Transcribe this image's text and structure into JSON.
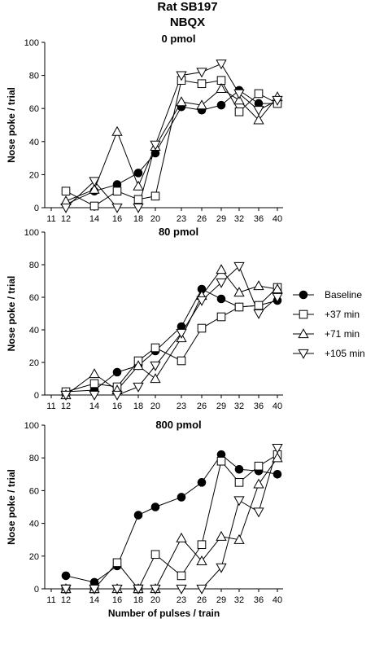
{
  "figure": {
    "title": "Rat SB197",
    "subtitle": "NBQX"
  },
  "legend": [
    {
      "label": "Baseline",
      "marker": "circle-filled"
    },
    {
      "label": "+37 min",
      "marker": "square-open"
    },
    {
      "label": "+71 min",
      "marker": "triangle-up-open"
    },
    {
      "label": "+105 min",
      "marker": "triangle-down-open"
    }
  ],
  "chart_data": [
    {
      "type": "line",
      "title": "0 pmol",
      "xlabel": "",
      "ylabel": "Nose poke / trial",
      "ylim": [
        0,
        100
      ],
      "yticks": [
        "0",
        "20",
        "40",
        "60",
        "80",
        "100"
      ],
      "categories": [
        "11",
        "12",
        "14",
        "16",
        "18",
        "20",
        "23",
        "26",
        "29",
        "32",
        "36",
        "40"
      ],
      "series": [
        {
          "name": "Baseline",
          "x": [
            "12",
            "14",
            "16",
            "18",
            "20",
            "23",
            "26",
            "29",
            "32",
            "36",
            "40"
          ],
          "values": [
            2,
            10,
            14,
            21,
            33,
            61,
            59,
            62,
            71,
            63,
            63
          ]
        },
        {
          "name": "+37 min",
          "x": [
            "12",
            "14",
            "16",
            "18",
            "20",
            "23",
            "26",
            "29",
            "32",
            "36",
            "40"
          ],
          "values": [
            10,
            1,
            10,
            5,
            7,
            77,
            75,
            77,
            58,
            69,
            63
          ]
        },
        {
          "name": "+71 min",
          "x": [
            "12",
            "14",
            "16",
            "18",
            "20",
            "23",
            "26",
            "29",
            "32",
            "36",
            "40"
          ],
          "values": [
            4,
            11,
            46,
            13,
            37,
            64,
            62,
            72,
            65,
            53,
            67
          ]
        },
        {
          "name": "+105 min",
          "x": [
            "12",
            "14",
            "16",
            "18",
            "20",
            "23",
            "26",
            "29",
            "32",
            "36",
            "40"
          ],
          "values": [
            0,
            16,
            0,
            0,
            38,
            80,
            82,
            87,
            69,
            59,
            65
          ]
        }
      ]
    },
    {
      "type": "line",
      "title": "80 pmol",
      "xlabel": "",
      "ylabel": "Nose poke / trial",
      "ylim": [
        0,
        100
      ],
      "yticks": [
        "0",
        "20",
        "40",
        "60",
        "80",
        "100"
      ],
      "categories": [
        "11",
        "12",
        "14",
        "16",
        "18",
        "20",
        "23",
        "26",
        "29",
        "32",
        "36",
        "40"
      ],
      "series": [
        {
          "name": "Baseline",
          "x": [
            "12",
            "14",
            "16",
            "18",
            "20",
            "23",
            "26",
            "29",
            "32",
            "36",
            "40"
          ],
          "values": [
            2,
            3,
            14,
            18,
            27,
            42,
            65,
            59,
            54,
            55,
            58
          ]
        },
        {
          "name": "+37 min",
          "x": [
            "12",
            "14",
            "16",
            "18",
            "20",
            "23",
            "26",
            "29",
            "32",
            "36",
            "40"
          ],
          "values": [
            2,
            7,
            5,
            21,
            29,
            21,
            41,
            48,
            54,
            55,
            66
          ]
        },
        {
          "name": "+71 min",
          "x": [
            "12",
            "14",
            "16",
            "18",
            "20",
            "23",
            "26",
            "29",
            "32",
            "36",
            "40"
          ],
          "values": [
            0,
            13,
            3,
            18,
            10,
            35,
            61,
            77,
            63,
            67,
            65
          ]
        },
        {
          "name": "+105 min",
          "x": [
            "12",
            "14",
            "16",
            "18",
            "20",
            "23",
            "26",
            "29",
            "32",
            "36",
            "40"
          ],
          "values": [
            0,
            0,
            0,
            5,
            18,
            38,
            58,
            69,
            79,
            50,
            60
          ]
        }
      ]
    },
    {
      "type": "line",
      "title": "800 pmol",
      "xlabel": "Number of pulses / train",
      "ylabel": "Nose poke / trial",
      "ylim": [
        0,
        100
      ],
      "yticks": [
        "0",
        "20",
        "40",
        "60",
        "80",
        "100"
      ],
      "categories": [
        "11",
        "12",
        "14",
        "16",
        "18",
        "20",
        "23",
        "26",
        "29",
        "32",
        "36",
        "40"
      ],
      "series": [
        {
          "name": "Baseline",
          "x": [
            "12",
            "14",
            "16",
            "18",
            "20",
            "23",
            "26",
            "29",
            "32",
            "36",
            "40"
          ],
          "values": [
            8,
            4,
            14,
            45,
            50,
            56,
            65,
            82,
            73,
            72,
            70
          ]
        },
        {
          "name": "+37 min",
          "x": [
            "12",
            "14",
            "16",
            "18",
            "20",
            "23",
            "26",
            "29",
            "32",
            "36",
            "40"
          ],
          "values": [
            0,
            0,
            16,
            0,
            21,
            8,
            27,
            78,
            65,
            75,
            82
          ]
        },
        {
          "name": "+71 min",
          "x": [
            "12",
            "14",
            "16",
            "18",
            "20",
            "23",
            "26",
            "29",
            "32",
            "36",
            "40"
          ],
          "values": [
            0,
            0,
            0,
            0,
            0,
            31,
            17,
            32,
            30,
            64,
            80
          ]
        },
        {
          "name": "+105 min",
          "x": [
            "12",
            "14",
            "16",
            "18",
            "20",
            "23",
            "26",
            "29",
            "32",
            "36",
            "40"
          ],
          "values": [
            0,
            0,
            0,
            0,
            0,
            0,
            0,
            13,
            54,
            47,
            86
          ]
        }
      ]
    }
  ]
}
